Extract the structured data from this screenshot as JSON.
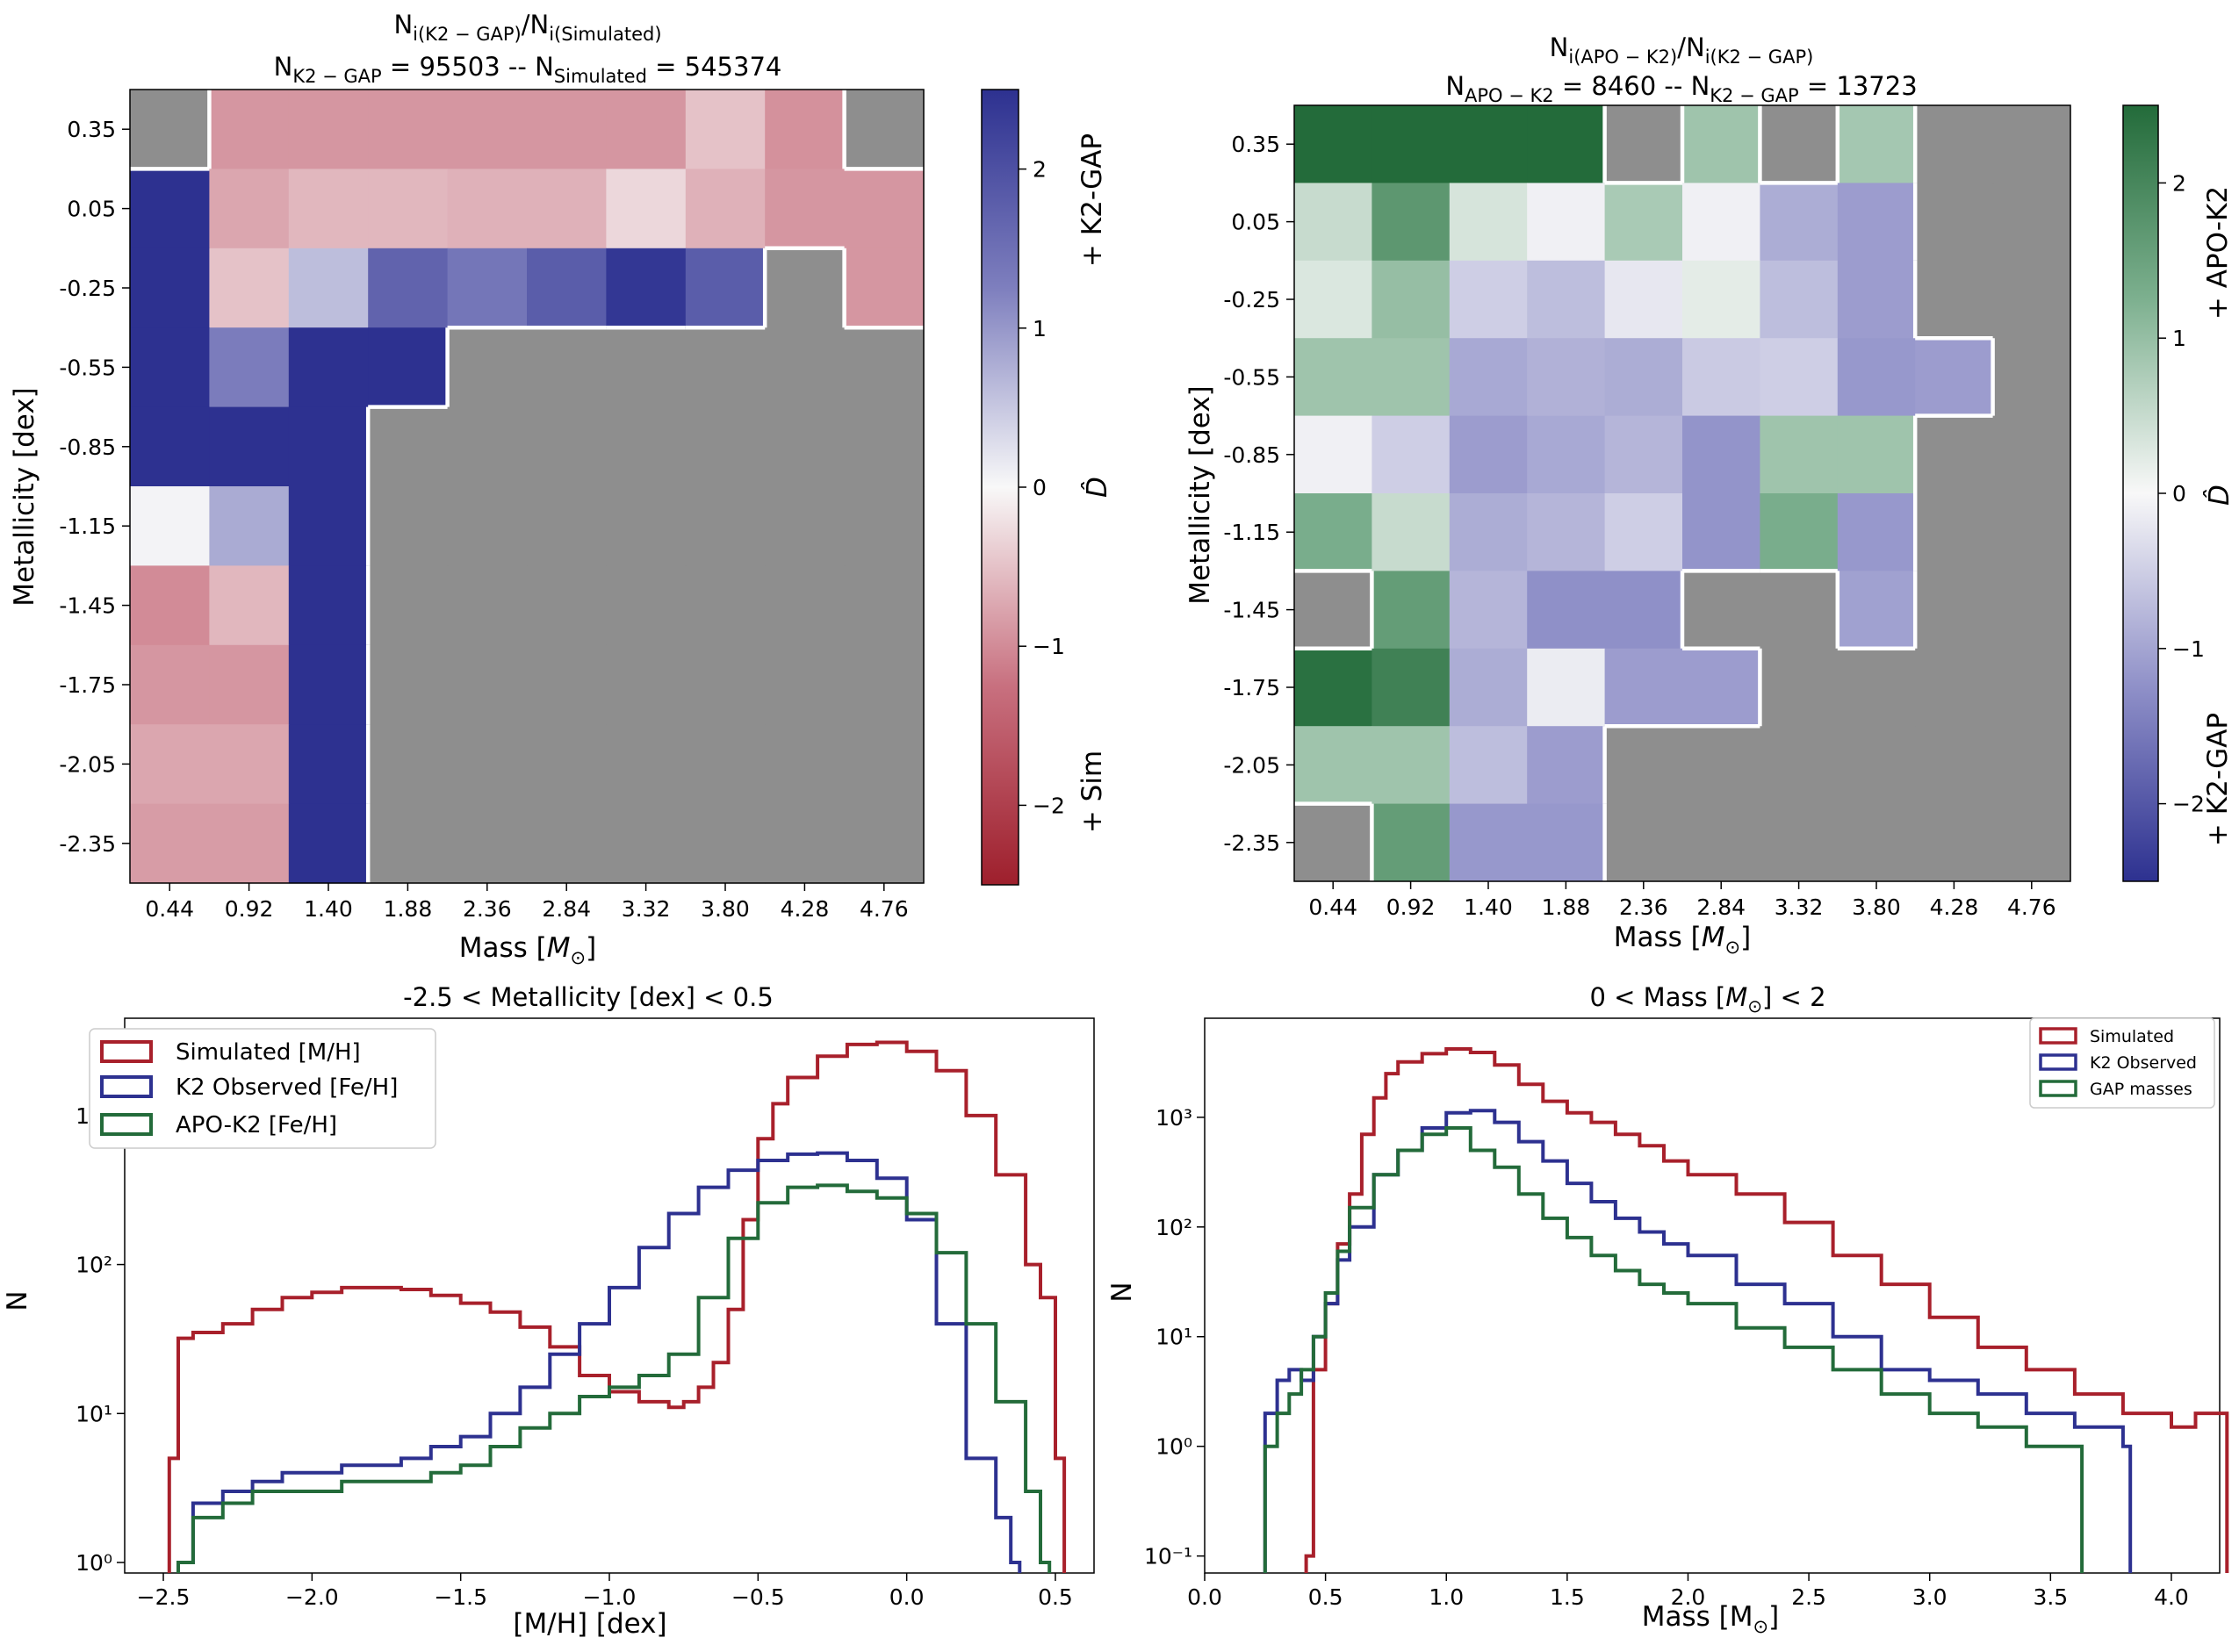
{
  "colors": {
    "sim": "#a8202b",
    "k2": "#2d3190",
    "apo": "#236b3a",
    "nodata": "#8e8e8e",
    "boundary": "#ffffff"
  },
  "chart_data": [
    {
      "type": "heatmap",
      "panel": "top-left",
      "title_line1": "N_i(K2 − GAP)/N_i(Simulated)",
      "title_line2": "N_K2−GAP = 95503 -- N_Simulated = 545374",
      "xlabel": "Mass [M_⊙]",
      "ylabel": "Metallicity [dex]",
      "x_ticks": [
        "0.44",
        "0.92",
        "1.40",
        "1.88",
        "2.36",
        "2.84",
        "3.32",
        "3.80",
        "4.28",
        "4.76"
      ],
      "y_ticks": [
        "0.35",
        "0.05",
        "-0.25",
        "-0.55",
        "-0.85",
        "-1.15",
        "-1.45",
        "-1.75",
        "-2.05",
        "-2.35"
      ],
      "colormap": "red-white-blue",
      "vrange": [
        -2.5,
        2.5
      ],
      "colorbar": {
        "label": "D̂",
        "ticks": [
          "2",
          "1",
          "0",
          "−1",
          "−2"
        ],
        "tick_values": [
          2,
          1,
          0,
          -1,
          -2
        ],
        "top_label": "+ K2-GAP",
        "bottom_label": "+ Sim"
      },
      "values": [
        [
          null,
          -0.9,
          -0.9,
          -0.9,
          -0.9,
          -0.9,
          -0.9,
          -0.5,
          -0.95,
          null
        ],
        [
          2.5,
          -0.75,
          -0.6,
          -0.6,
          -0.65,
          -0.65,
          -0.3,
          -0.65,
          -0.9,
          -0.9
        ],
        [
          2.5,
          -0.5,
          0.6,
          1.7,
          1.4,
          1.8,
          2.4,
          1.8,
          null,
          -0.9
        ],
        [
          2.5,
          1.3,
          2.5,
          2.5,
          null,
          null,
          null,
          null,
          null,
          null
        ],
        [
          2.5,
          2.5,
          2.5,
          null,
          null,
          null,
          null,
          null,
          null,
          null
        ],
        [
          0.05,
          0.8,
          2.5,
          null,
          null,
          null,
          null,
          null,
          null,
          null
        ],
        [
          -1.0,
          -0.6,
          2.5,
          null,
          null,
          null,
          null,
          null,
          null,
          null
        ],
        [
          -0.9,
          -0.9,
          2.5,
          null,
          null,
          null,
          null,
          null,
          null,
          null
        ],
        [
          -0.75,
          -0.75,
          2.5,
          null,
          null,
          null,
          null,
          null,
          null,
          null
        ],
        [
          -0.85,
          -0.85,
          2.5,
          null,
          null,
          null,
          null,
          null,
          null,
          null
        ]
      ]
    },
    {
      "type": "heatmap",
      "panel": "top-right",
      "title_line1": "N_i(APO − K2)/N_i(K2 − GAP)",
      "title_line2": "N_APO−K2 = 8460 -- N_K2−GAP = 13723",
      "xlabel": "Mass [M_⊙]",
      "ylabel": "Metallicity [dex]",
      "x_ticks": [
        "0.44",
        "0.92",
        "1.40",
        "1.88",
        "2.36",
        "2.84",
        "3.32",
        "3.80",
        "4.28",
        "4.76"
      ],
      "y_ticks": [
        "0.35",
        "0.05",
        "-0.25",
        "-0.55",
        "-0.85",
        "-1.15",
        "-1.45",
        "-1.75",
        "-2.05",
        "-2.35"
      ],
      "colormap": "blue-white-green",
      "vrange": [
        -2.5,
        2.5
      ],
      "colorbar": {
        "label": "D̂",
        "ticks": [
          "2",
          "1",
          "0",
          "−1",
          "−2"
        ],
        "tick_values": [
          2,
          1,
          0,
          -1,
          -2
        ],
        "top_label": "+ APO-K2",
        "bottom_label": "+ K2-GAP"
      },
      "values": [
        [
          2.5,
          2.5,
          2.5,
          2.5,
          null,
          0.9,
          null,
          0.85,
          null,
          null
        ],
        [
          0.5,
          1.7,
          0.35,
          -0.1,
          0.8,
          -0.1,
          -0.9,
          -1.1,
          null,
          null
        ],
        [
          0.3,
          1.0,
          -0.5,
          -0.7,
          -0.2,
          0.2,
          -0.7,
          -1.1,
          null,
          null
        ],
        [
          0.9,
          0.9,
          -0.95,
          -0.85,
          -0.9,
          -0.55,
          -0.5,
          -1.15,
          -1.1,
          null
        ],
        [
          -0.1,
          -0.5,
          -1.1,
          -0.95,
          -0.8,
          -1.2,
          0.9,
          0.9,
          null,
          null
        ],
        [
          1.3,
          0.5,
          -0.9,
          -0.8,
          -0.5,
          -1.2,
          1.3,
          -1.15,
          null,
          null
        ],
        [
          null,
          1.6,
          -0.8,
          -1.25,
          -1.25,
          null,
          null,
          -1.05,
          null,
          null
        ],
        [
          2.4,
          2.1,
          -0.9,
          -0.15,
          -1.1,
          -1.1,
          null,
          null,
          null,
          null
        ],
        [
          0.9,
          0.9,
          -0.7,
          -1.1,
          null,
          null,
          null,
          null,
          null,
          null
        ],
        [
          null,
          1.6,
          -1.15,
          -1.15,
          null,
          null,
          null,
          null,
          null,
          null
        ]
      ]
    },
    {
      "type": "line",
      "subtype": "step-histogram",
      "panel": "bottom-left",
      "title": "-2.5  <  Metallicity [dex]  <  0.5",
      "xlabel": "[M/H] [dex]",
      "ylabel": "N",
      "yscale": "log",
      "xlim": [
        -2.63,
        0.63
      ],
      "ylim": [
        0.85,
        4500
      ],
      "x_ticks": [
        -2.5,
        -2.0,
        -1.5,
        -1.0,
        -0.5,
        0.0,
        0.5
      ],
      "x_tick_labels": [
        "−2.5",
        "−2.0",
        "−1.5",
        "−1.0",
        "−0.5",
        "0.0",
        "0.5"
      ],
      "y_ticks": [
        1,
        10,
        100,
        1000
      ],
      "y_tick_labels": [
        "10⁰",
        "10¹",
        "10²",
        "10³"
      ],
      "legend_position": "upper-left",
      "series": [
        {
          "name": "Simulated [M/H]",
          "color": "#a8202b",
          "x": [
            -2.48,
            -2.45,
            -2.4,
            -2.3,
            -2.2,
            -2.1,
            -2.0,
            -1.9,
            -1.8,
            -1.7,
            -1.6,
            -1.5,
            -1.4,
            -1.3,
            -1.2,
            -1.1,
            -1.0,
            -0.9,
            -0.8,
            -0.75,
            -0.7,
            -0.65,
            -0.6,
            -0.55,
            -0.5,
            -0.45,
            -0.4,
            -0.3,
            -0.2,
            -0.1,
            0.0,
            0.1,
            0.2,
            0.3,
            0.4,
            0.45,
            0.5
          ],
          "values": [
            5,
            32,
            35,
            40,
            50,
            60,
            65,
            70,
            70,
            68,
            62,
            55,
            48,
            38,
            28,
            18,
            14,
            12,
            11,
            12,
            15,
            22,
            50,
            200,
            700,
            1200,
            1800,
            2500,
            3000,
            3100,
            2700,
            2000,
            1000,
            400,
            100,
            60,
            5
          ]
        },
        {
          "name": "K2 Observed [Fe/H]",
          "color": "#2d3190",
          "x": [
            -2.45,
            -2.4,
            -2.3,
            -2.2,
            -2.1,
            -2.0,
            -1.9,
            -1.8,
            -1.7,
            -1.6,
            -1.5,
            -1.4,
            -1.3,
            -1.2,
            -1.1,
            -1.0,
            -0.9,
            -0.8,
            -0.7,
            -0.6,
            -0.5,
            -0.4,
            -0.3,
            -0.2,
            -0.1,
            0.0,
            0.1,
            0.2,
            0.3,
            0.35
          ],
          "values": [
            1,
            2.5,
            3,
            3.5,
            4,
            4,
            4.5,
            4.5,
            5,
            6,
            7,
            10,
            15,
            25,
            40,
            70,
            130,
            220,
            330,
            430,
            500,
            550,
            560,
            500,
            380,
            200,
            40,
            5,
            2,
            1
          ]
        },
        {
          "name": "APO-K2 [Fe/H]",
          "color": "#236b3a",
          "x": [
            -2.45,
            -2.4,
            -2.3,
            -2.2,
            -2.1,
            -2.0,
            -1.9,
            -1.8,
            -1.7,
            -1.6,
            -1.5,
            -1.4,
            -1.3,
            -1.2,
            -1.1,
            -1.0,
            -0.9,
            -0.8,
            -0.7,
            -0.6,
            -0.5,
            -0.4,
            -0.3,
            -0.2,
            -0.1,
            0.0,
            0.1,
            0.2,
            0.3,
            0.4,
            0.45
          ],
          "values": [
            1,
            2,
            2.5,
            3,
            3,
            3,
            3.5,
            3.5,
            3.5,
            4,
            4.5,
            6,
            8,
            10,
            13,
            15,
            18,
            25,
            60,
            150,
            260,
            330,
            340,
            310,
            280,
            220,
            120,
            40,
            12,
            3,
            1
          ]
        }
      ]
    },
    {
      "type": "line",
      "subtype": "step-histogram",
      "panel": "bottom-right",
      "title": "0  <  Mass [M_⊙]  <  2",
      "xlabel": "Mass [M_⊙]",
      "ylabel": "N",
      "yscale": "log",
      "xlim": [
        0.0,
        4.2
      ],
      "ylim": [
        0.07,
        8000
      ],
      "x_ticks": [
        0.0,
        0.5,
        1.0,
        1.5,
        2.0,
        2.5,
        3.0,
        3.5,
        4.0
      ],
      "x_tick_labels": [
        "0.0",
        "0.5",
        "1.0",
        "1.5",
        "2.0",
        "2.5",
        "3.0",
        "3.5",
        "4.0"
      ],
      "y_ticks": [
        0.1,
        1,
        10,
        100,
        1000
      ],
      "y_tick_labels": [
        "10⁻¹",
        "10⁰",
        "10¹",
        "10²",
        "10³"
      ],
      "legend_position": "upper-right",
      "series": [
        {
          "name": "Simulated",
          "color": "#a8202b",
          "x": [
            0.42,
            0.45,
            0.5,
            0.55,
            0.6,
            0.65,
            0.7,
            0.75,
            0.8,
            0.9,
            1.0,
            1.1,
            1.2,
            1.3,
            1.4,
            1.5,
            1.6,
            1.7,
            1.8,
            1.9,
            2.0,
            2.2,
            2.4,
            2.6,
            2.8,
            3.0,
            3.2,
            3.4,
            3.6,
            3.8,
            4.0,
            4.1,
            4.2
          ],
          "values": [
            0.1,
            5,
            20,
            70,
            200,
            700,
            1500,
            2500,
            3200,
            3800,
            4200,
            3900,
            3000,
            2000,
            1400,
            1100,
            900,
            700,
            550,
            400,
            300,
            200,
            110,
            55,
            30,
            15,
            8,
            5,
            3,
            2,
            1.5,
            2,
            2
          ]
        },
        {
          "name": "K2 Observed",
          "color": "#2d3190",
          "x": [
            0.25,
            0.3,
            0.35,
            0.4,
            0.45,
            0.5,
            0.55,
            0.6,
            0.7,
            0.8,
            0.9,
            1.0,
            1.1,
            1.2,
            1.3,
            1.4,
            1.5,
            1.6,
            1.7,
            1.8,
            1.9,
            2.0,
            2.2,
            2.4,
            2.6,
            2.8,
            3.0,
            3.2,
            3.4,
            3.6,
            3.8
          ],
          "values": [
            2,
            4,
            5,
            4,
            10,
            20,
            50,
            100,
            300,
            500,
            800,
            1100,
            1150,
            900,
            600,
            400,
            250,
            170,
            120,
            90,
            70,
            55,
            30,
            20,
            10,
            5,
            4,
            3,
            2,
            1.5,
            1
          ]
        },
        {
          "name": "GAP masses",
          "color": "#236b3a",
          "x": [
            0.25,
            0.3,
            0.35,
            0.4,
            0.45,
            0.5,
            0.55,
            0.6,
            0.7,
            0.8,
            0.9,
            1.0,
            1.1,
            1.2,
            1.3,
            1.4,
            1.5,
            1.6,
            1.7,
            1.8,
            1.9,
            2.0,
            2.2,
            2.4,
            2.6,
            2.8,
            3.0,
            3.2,
            3.4,
            3.6
          ],
          "values": [
            1,
            2,
            3,
            5,
            10,
            25,
            60,
            150,
            300,
            500,
            700,
            800,
            500,
            350,
            200,
            120,
            80,
            55,
            40,
            30,
            25,
            20,
            12,
            8,
            5,
            3,
            2,
            1.5,
            1,
            1
          ]
        }
      ]
    }
  ]
}
